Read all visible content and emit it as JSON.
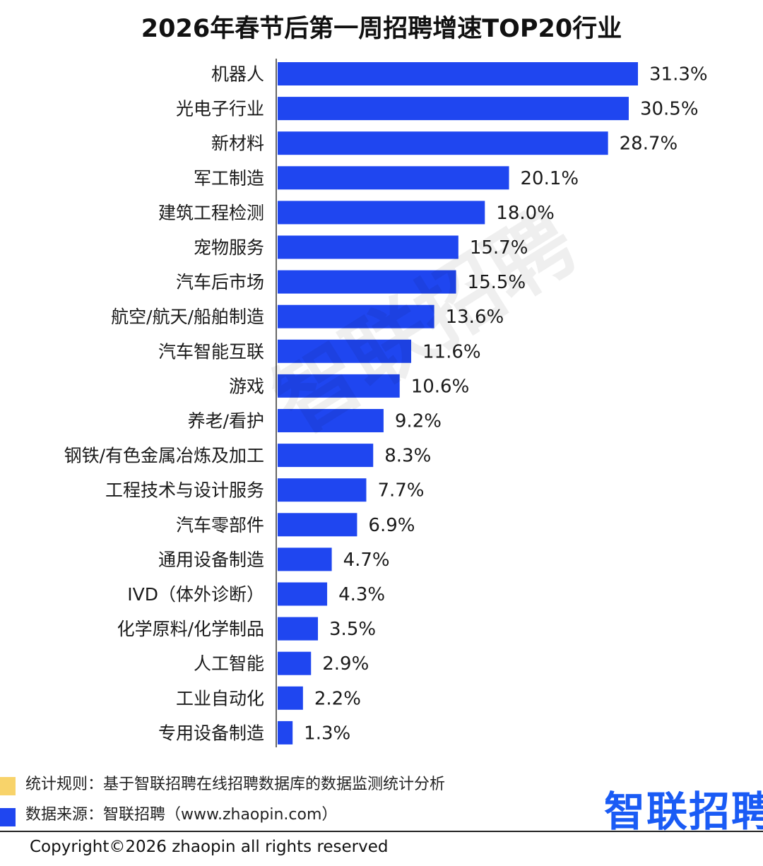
{
  "chart_data": {
    "type": "bar",
    "orientation": "horizontal",
    "title": "2026年春节后第一周招聘增速TOP20行业",
    "categories": [
      "机器人",
      "光电子行业",
      "新材料",
      "军工制造",
      "建筑工程检测",
      "宠物服务",
      "汽车后市场",
      "航空/航天/船舶制造",
      "汽车智能互联",
      "游戏",
      "养老/看护",
      "钢铁/有色金属冶炼及加工",
      "工程技术与设计服务",
      "汽车零部件",
      "通用设备制造",
      "IVD（体外诊断）",
      "化学原料/化学制品",
      "人工智能",
      "工业自动化",
      "专用设备制造"
    ],
    "values": [
      31.3,
      30.5,
      28.7,
      20.1,
      18.0,
      15.7,
      15.5,
      13.6,
      11.6,
      10.6,
      9.2,
      8.3,
      7.7,
      6.9,
      4.7,
      4.3,
      3.5,
      2.9,
      2.2,
      1.3
    ],
    "value_labels": [
      "31.3%",
      "30.5%",
      "28.7%",
      "20.1%",
      "18.0%",
      "15.7%",
      "15.5%",
      "13.6%",
      "11.6%",
      "10.6%",
      "9.2%",
      "8.3%",
      "7.7%",
      "6.9%",
      "4.7%",
      "4.3%",
      "3.5%",
      "2.9%",
      "2.2%",
      "1.3%"
    ],
    "xlim": [
      0,
      31.3
    ],
    "bar_color": "#1f46f0",
    "grid": false,
    "legend": "none"
  },
  "watermark": "智联招聘",
  "footer": {
    "rule": "统计规则：基于智联招聘在线招聘数据库的数据监测统计分析",
    "source": "数据来源：智联招聘（www.zhaopin.com）",
    "rule_marker_color": "#f8d36a",
    "source_marker_color": "#1f46f0"
  },
  "logo": "智联招聘",
  "copyright": "Copyright©2026 zhaopin all rights reserved"
}
